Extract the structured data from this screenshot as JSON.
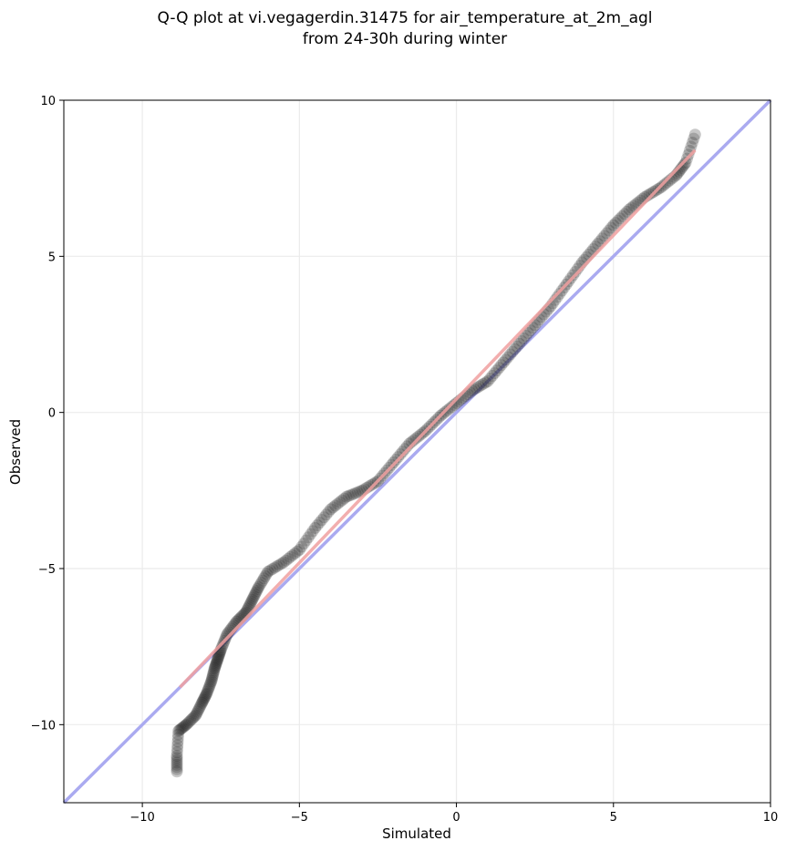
{
  "chart_data": {
    "type": "scatter",
    "title_lines": [
      "Q-Q plot at vi.vegagerdin.31475 for air_temperature_at_2m_agl",
      "from 24-30h during winter"
    ],
    "xlabel": "Simulated",
    "ylabel": "Observed",
    "xlim": [
      -12.5,
      10
    ],
    "ylim": [
      -12.5,
      10
    ],
    "xticks": [
      -10,
      -5,
      0,
      5,
      10
    ],
    "yticks": [
      -10,
      -5,
      0,
      5,
      10
    ],
    "xtick_labels": [
      "−10",
      "−5",
      "0",
      "5",
      "10"
    ],
    "ytick_labels": [
      "−10",
      "−5",
      "0",
      "5",
      "10"
    ],
    "grid": true,
    "legend": "none",
    "reference_line": {
      "x": [
        -12.5,
        10
      ],
      "y": [
        -12.5,
        10
      ],
      "color": "#aaaaf0"
    },
    "fit_line": {
      "x": [
        -8.8,
        7.6
      ],
      "y": [
        -8.8,
        8.4
      ],
      "color": "#f0a0a0"
    },
    "quantile_curve": {
      "x": [
        -8.9,
        -8.9,
        -8.85,
        -8.6,
        -8.3,
        -8.1,
        -7.95,
        -7.8,
        -7.7,
        -7.6,
        -7.5,
        -7.3,
        -7.0,
        -6.7,
        -6.5,
        -6.3,
        -6.0,
        -5.5,
        -5.0,
        -4.5,
        -4.0,
        -3.5,
        -3.0,
        -2.5,
        -2.0,
        -1.5,
        -1.0,
        -0.5,
        0.0,
        0.5,
        1.0,
        1.5,
        2.0,
        2.5,
        3.0,
        3.5,
        4.0,
        4.5,
        5.0,
        5.5,
        6.0,
        6.5,
        7.0,
        7.3,
        7.6
      ],
      "y": [
        -11.5,
        -11.0,
        -10.2,
        -10.0,
        -9.7,
        -9.3,
        -9.0,
        -8.6,
        -8.2,
        -7.9,
        -7.6,
        -7.1,
        -6.7,
        -6.4,
        -6.0,
        -5.6,
        -5.1,
        -4.8,
        -4.4,
        -3.7,
        -3.1,
        -2.7,
        -2.5,
        -2.2,
        -1.6,
        -1.0,
        -0.6,
        -0.1,
        0.3,
        0.7,
        1.0,
        1.6,
        2.2,
        2.8,
        3.4,
        4.1,
        4.8,
        5.4,
        6.0,
        6.5,
        6.9,
        7.2,
        7.6,
        8.0,
        8.9
      ],
      "color": "#222222"
    }
  }
}
